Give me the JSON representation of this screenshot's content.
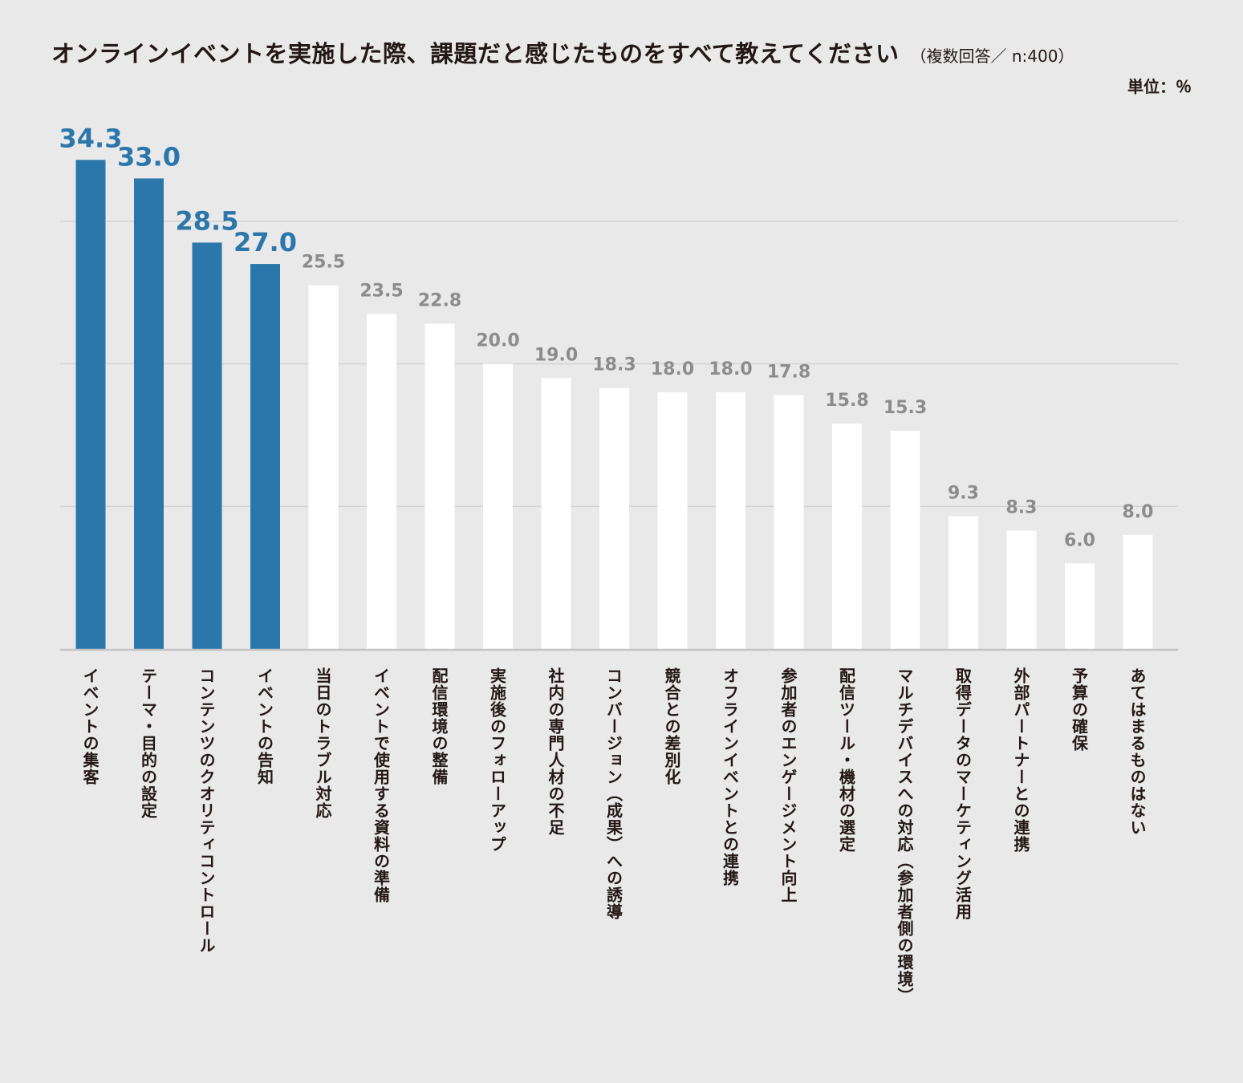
{
  "chart_data": {
    "type": "bar",
    "title": "オンラインイベントを実施した際、課題だと感じたものをすべて教えてください",
    "subtitle": "（複数回答／ n:400）",
    "unit": "単位：％",
    "ylim": [
      0,
      40
    ],
    "gridlines": [
      10,
      20,
      30
    ],
    "highlight_count": 4,
    "colors": {
      "highlight": "#2b76aa",
      "normal": "#ffffff",
      "highlight_label": "#2b76aa",
      "normal_label": "#8c8c8c",
      "grid": "#d2d2d2",
      "axis": "#c4c4c4"
    },
    "categories": [
      "イベントの集客",
      "テーマ・目的の設定",
      "コンテンツのクオリティコントロール",
      "イベントの告知",
      "当日のトラブル対応",
      "イベントで使用する資料の準備",
      "配信環境の整備",
      "実施後のフォローアップ",
      "社内の専門人材の不足",
      "コンバージョン（成果）への誘導",
      "競合との差別化",
      "オフラインイベントとの連携",
      "参加者のエンゲージメント向上",
      "配信ツール・機材の選定",
      "マルチデバイスへの対応（参加者側の環境）",
      "取得データのマーケティング活用",
      "外部パートナーとの連携",
      "予算の確保",
      "あてはまるものはない"
    ],
    "values": [
      34.3,
      33.0,
      28.5,
      27.0,
      25.5,
      23.5,
      22.8,
      20.0,
      19.0,
      18.3,
      18.0,
      18.0,
      17.8,
      15.8,
      15.3,
      9.3,
      8.3,
      6.0,
      8.0
    ],
    "value_labels": [
      "34.3",
      "33.0",
      "28.5",
      "27.0",
      "25.5",
      "23.5",
      "22.8",
      "20.0",
      "19.0",
      "18.3",
      "18.0",
      "18.0",
      "17.8",
      "15.8",
      "15.3",
      "9.3",
      "8.3",
      "6.0",
      "8.0"
    ]
  }
}
